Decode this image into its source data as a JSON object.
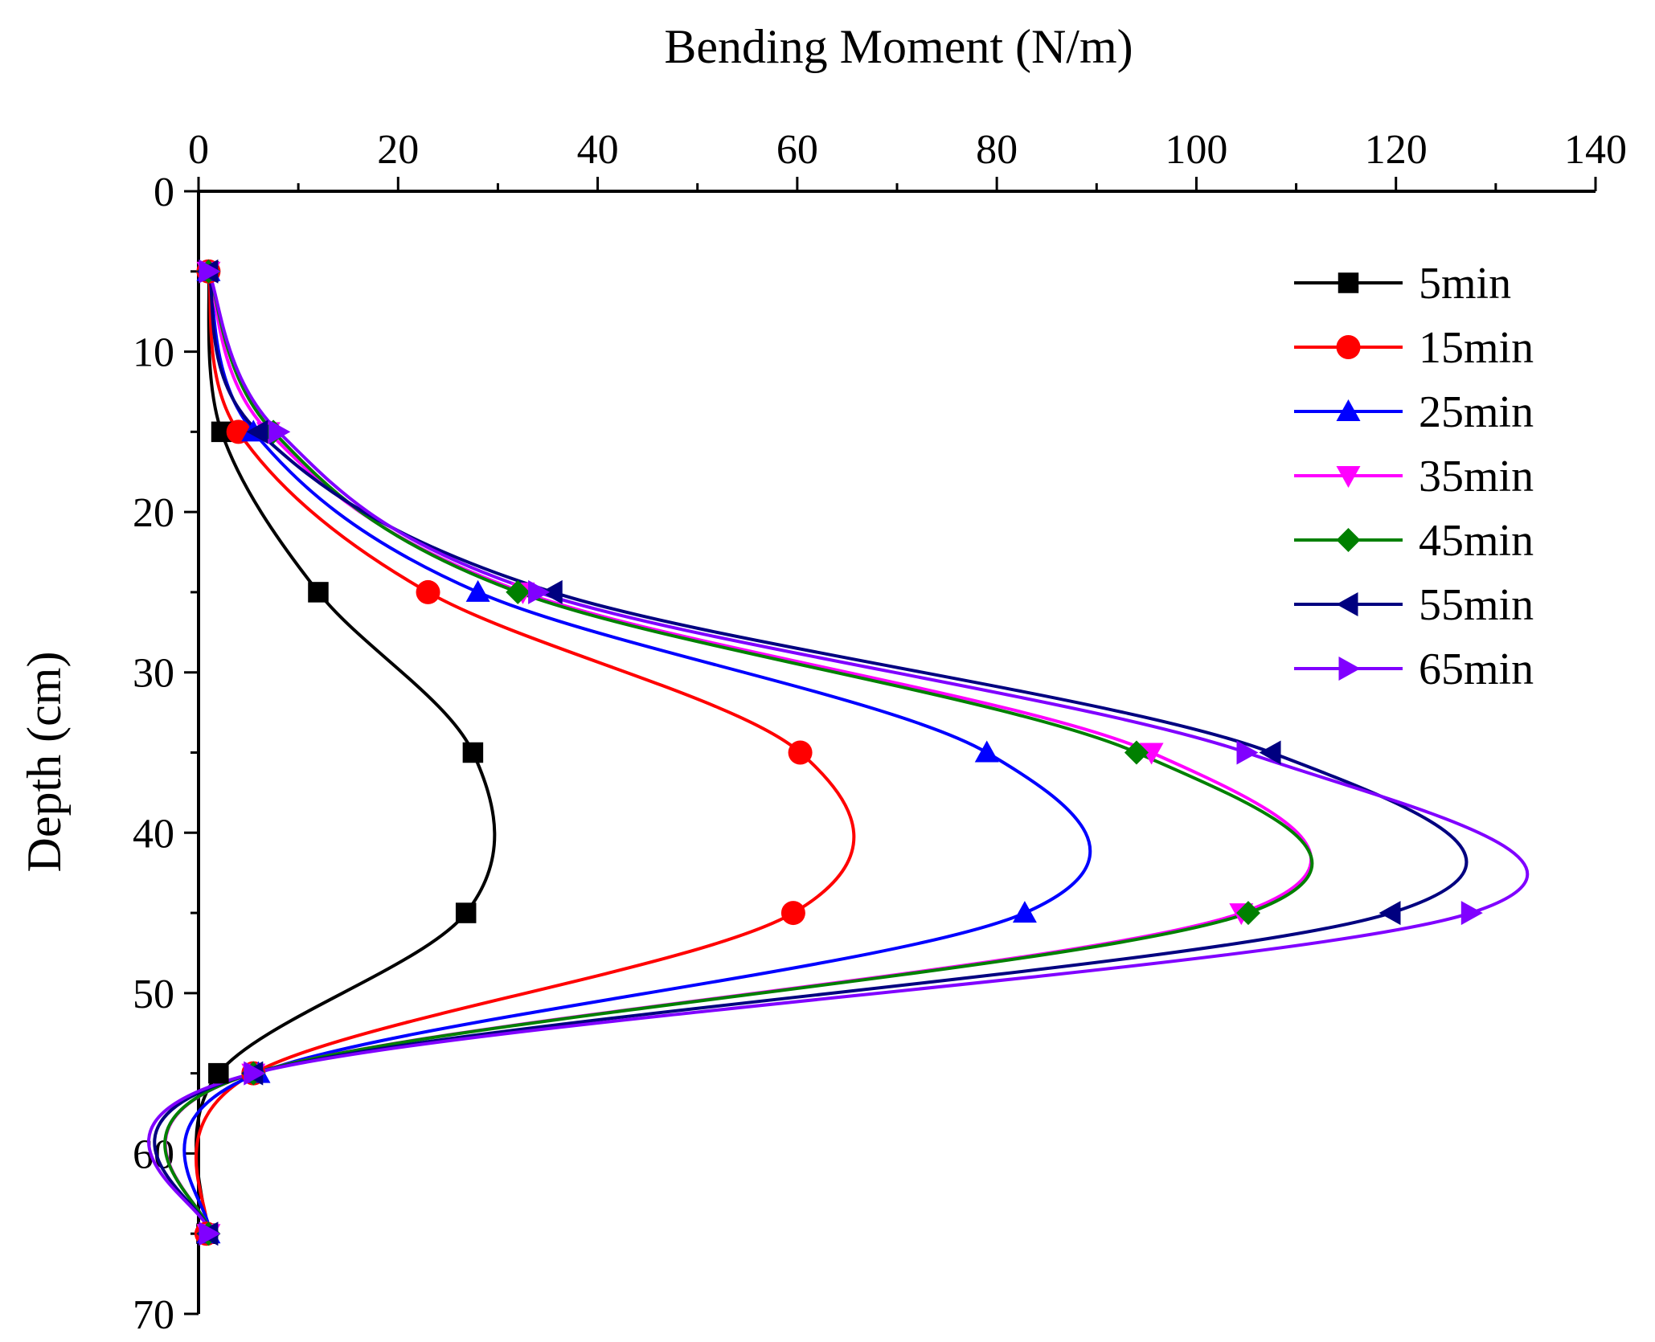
{
  "chart_data": {
    "type": "line",
    "xlabel": "Bending Moment (N/m)",
    "ylabel": "Depth (cm)",
    "xlim": [
      0,
      140
    ],
    "ylim": [
      0,
      70
    ],
    "x_axis_position": "top",
    "y_axis_inverted": true,
    "xticks": [
      0,
      20,
      40,
      60,
      80,
      100,
      120,
      140
    ],
    "yticks": [
      0,
      10,
      20,
      30,
      40,
      50,
      60,
      70
    ],
    "grid": false,
    "legend_position": "top-right",
    "depths": [
      5,
      15,
      25,
      35,
      45,
      55,
      65
    ],
    "series": [
      {
        "name": "5min",
        "color": "#000000",
        "marker": "square",
        "values": [
          1,
          2.3,
          12,
          27.5,
          26.8,
          2,
          0.8
        ]
      },
      {
        "name": "15min",
        "color": "#ff0000",
        "marker": "circle",
        "values": [
          1,
          4,
          23,
          60.3,
          59.6,
          5.5,
          0.8
        ]
      },
      {
        "name": "25min",
        "color": "#0000ff",
        "marker": "triangle-up",
        "values": [
          1,
          5.5,
          28,
          79,
          82.8,
          6,
          1
        ]
      },
      {
        "name": "35min",
        "color": "#ff00ff",
        "marker": "triangle-down",
        "values": [
          1,
          7,
          32.5,
          95.5,
          104.5,
          5.5,
          1
        ]
      },
      {
        "name": "45min",
        "color": "#008000",
        "marker": "diamond",
        "values": [
          1,
          7.5,
          32,
          94,
          105.2,
          5.5,
          1
        ]
      },
      {
        "name": "55min",
        "color": "#000080",
        "marker": "triangle-left",
        "values": [
          1,
          6,
          35.5,
          107.5,
          119.5,
          5.5,
          1
        ]
      },
      {
        "name": "65min",
        "color": "#8000ff",
        "marker": "triangle-right",
        "values": [
          1,
          8,
          34,
          105,
          127.5,
          5.5,
          1
        ]
      }
    ]
  }
}
